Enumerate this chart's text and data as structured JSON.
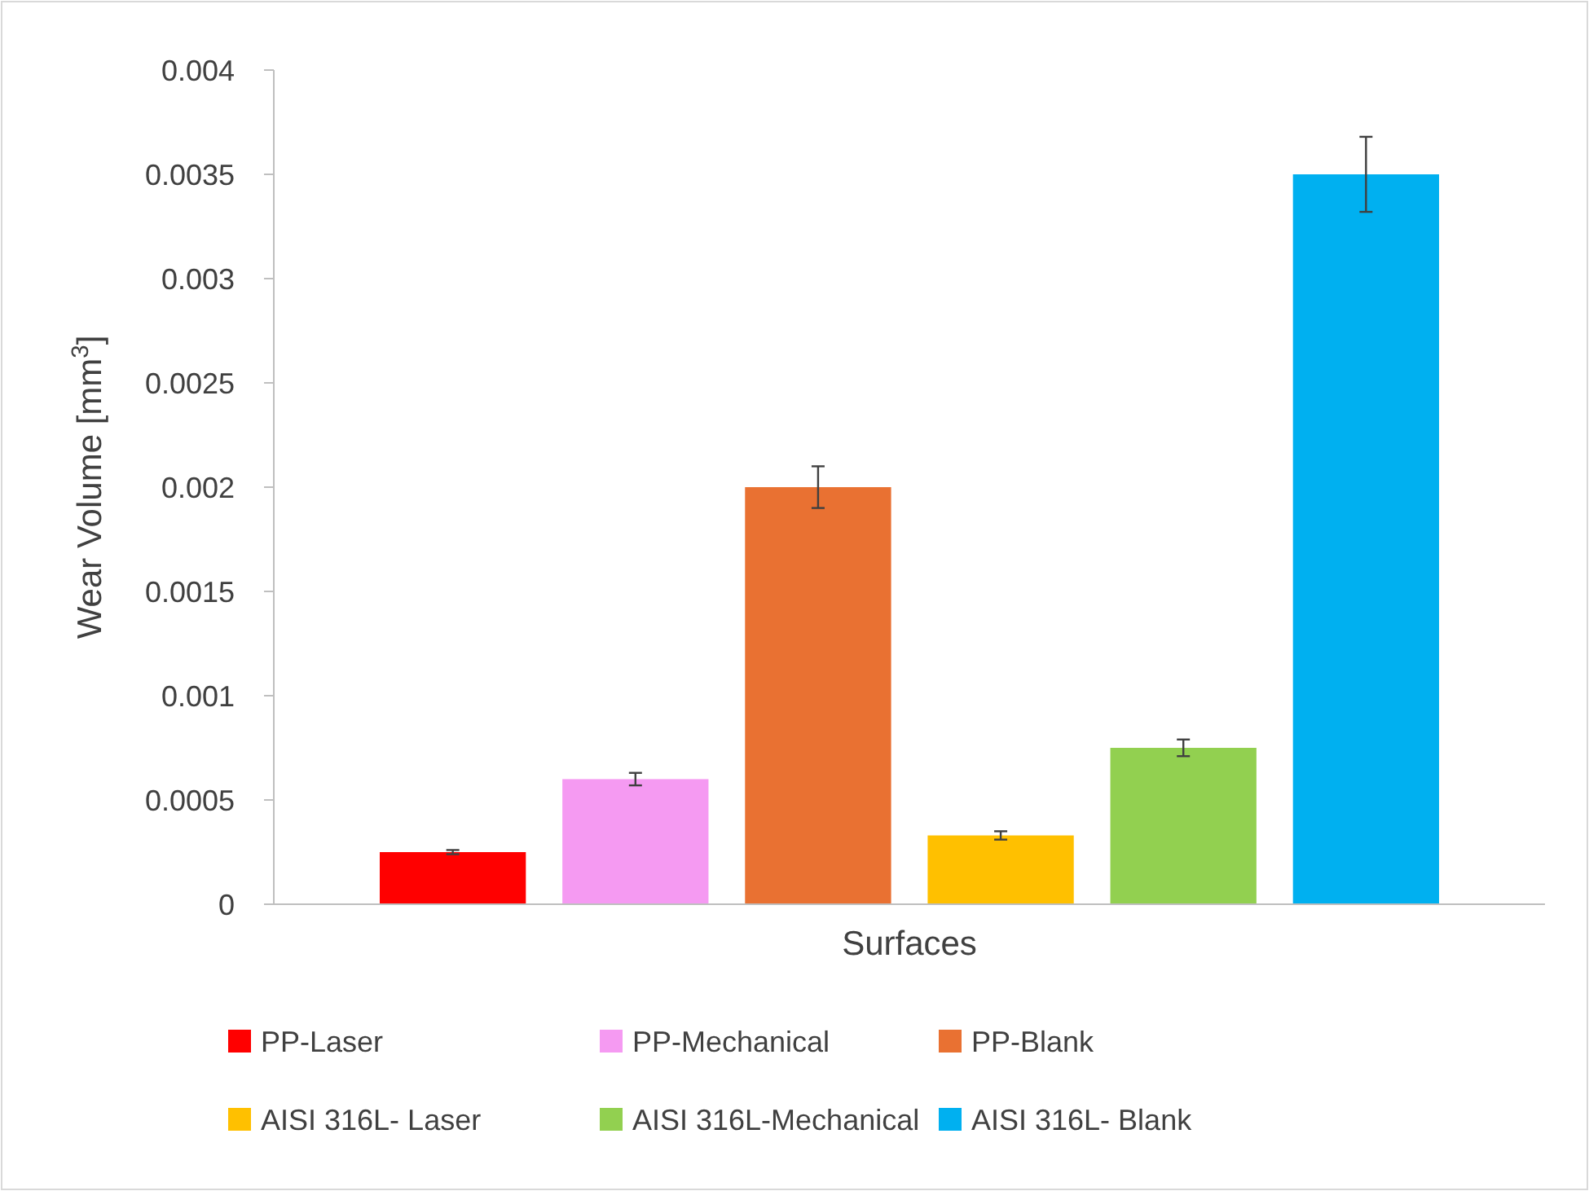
{
  "chart_data": {
    "type": "bar",
    "xlabel": "Surfaces",
    "ylabel": "Wear Volume [mm$^{3}$]",
    "categories": [
      null
    ],
    "series": [
      {
        "name": "PP-Laser",
        "color": "#ff0000",
        "values": [
          0.00025
        ],
        "errors": [
          1e-05
        ]
      },
      {
        "name": "PP-Mechanical",
        "color": "#f59af2",
        "values": [
          0.0006
        ],
        "errors": [
          3e-05
        ]
      },
      {
        "name": "PP-Blank",
        "color": "#e97132",
        "values": [
          0.002
        ],
        "errors": [
          0.0001
        ]
      },
      {
        "name": "AISI 316L- Laser",
        "color": "#ffc000",
        "values": [
          0.00033
        ],
        "errors": [
          2e-05
        ]
      },
      {
        "name": "AISI 316L-Mechanical",
        "color": "#92d050",
        "values": [
          0.00075
        ],
        "errors": [
          4e-05
        ]
      },
      {
        "name": "AISI 316L- Blank",
        "color": "#00b0f0",
        "values": [
          0.0035
        ],
        "errors": [
          0.00018
        ]
      }
    ],
    "ylim": [
      0,
      0.004
    ],
    "yticks": [
      0,
      0.0005,
      0.001,
      0.0015,
      0.002,
      0.0025,
      0.003,
      0.0035,
      0.004
    ],
    "grid": false,
    "legend": "bottom"
  }
}
